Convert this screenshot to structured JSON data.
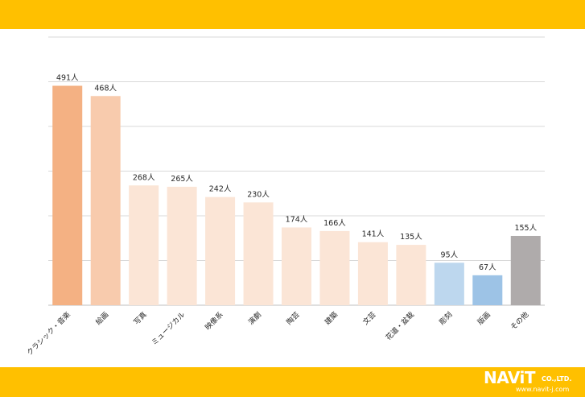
{
  "logo": {
    "main": "NAViT",
    "company": "CO.,LTD.",
    "url": "www.navit-j.com"
  },
  "chart_data": {
    "type": "bar",
    "title": "",
    "xlabel": "",
    "ylabel": "",
    "ylim": [
      0,
      600
    ],
    "grid": true,
    "categories": [
      "クラシック・音楽",
      "絵画",
      "写真",
      "ミュージカル",
      "映像系",
      "演劇",
      "陶芸",
      "建築",
      "文芸",
      "花道・盆栽",
      "彫刻",
      "版画",
      "その他"
    ],
    "values": [
      491,
      468,
      268,
      265,
      242,
      230,
      174,
      166,
      141,
      135,
      95,
      67,
      155
    ],
    "data_labels": [
      "491人",
      "468人",
      "268人",
      "265人",
      "242人",
      "230人",
      "174人",
      "166人",
      "141人",
      "135人",
      "95人",
      "67人",
      "155人"
    ],
    "colors": [
      "#F4B183",
      "#F8CBAD",
      "#FBE5D6",
      "#FBE5D6",
      "#FBE5D6",
      "#FBE5D6",
      "#FBE5D6",
      "#FBE5D6",
      "#FBE5D6",
      "#FBE5D6",
      "#BDD7EE",
      "#9DC3E6",
      "#AFABAB"
    ]
  }
}
